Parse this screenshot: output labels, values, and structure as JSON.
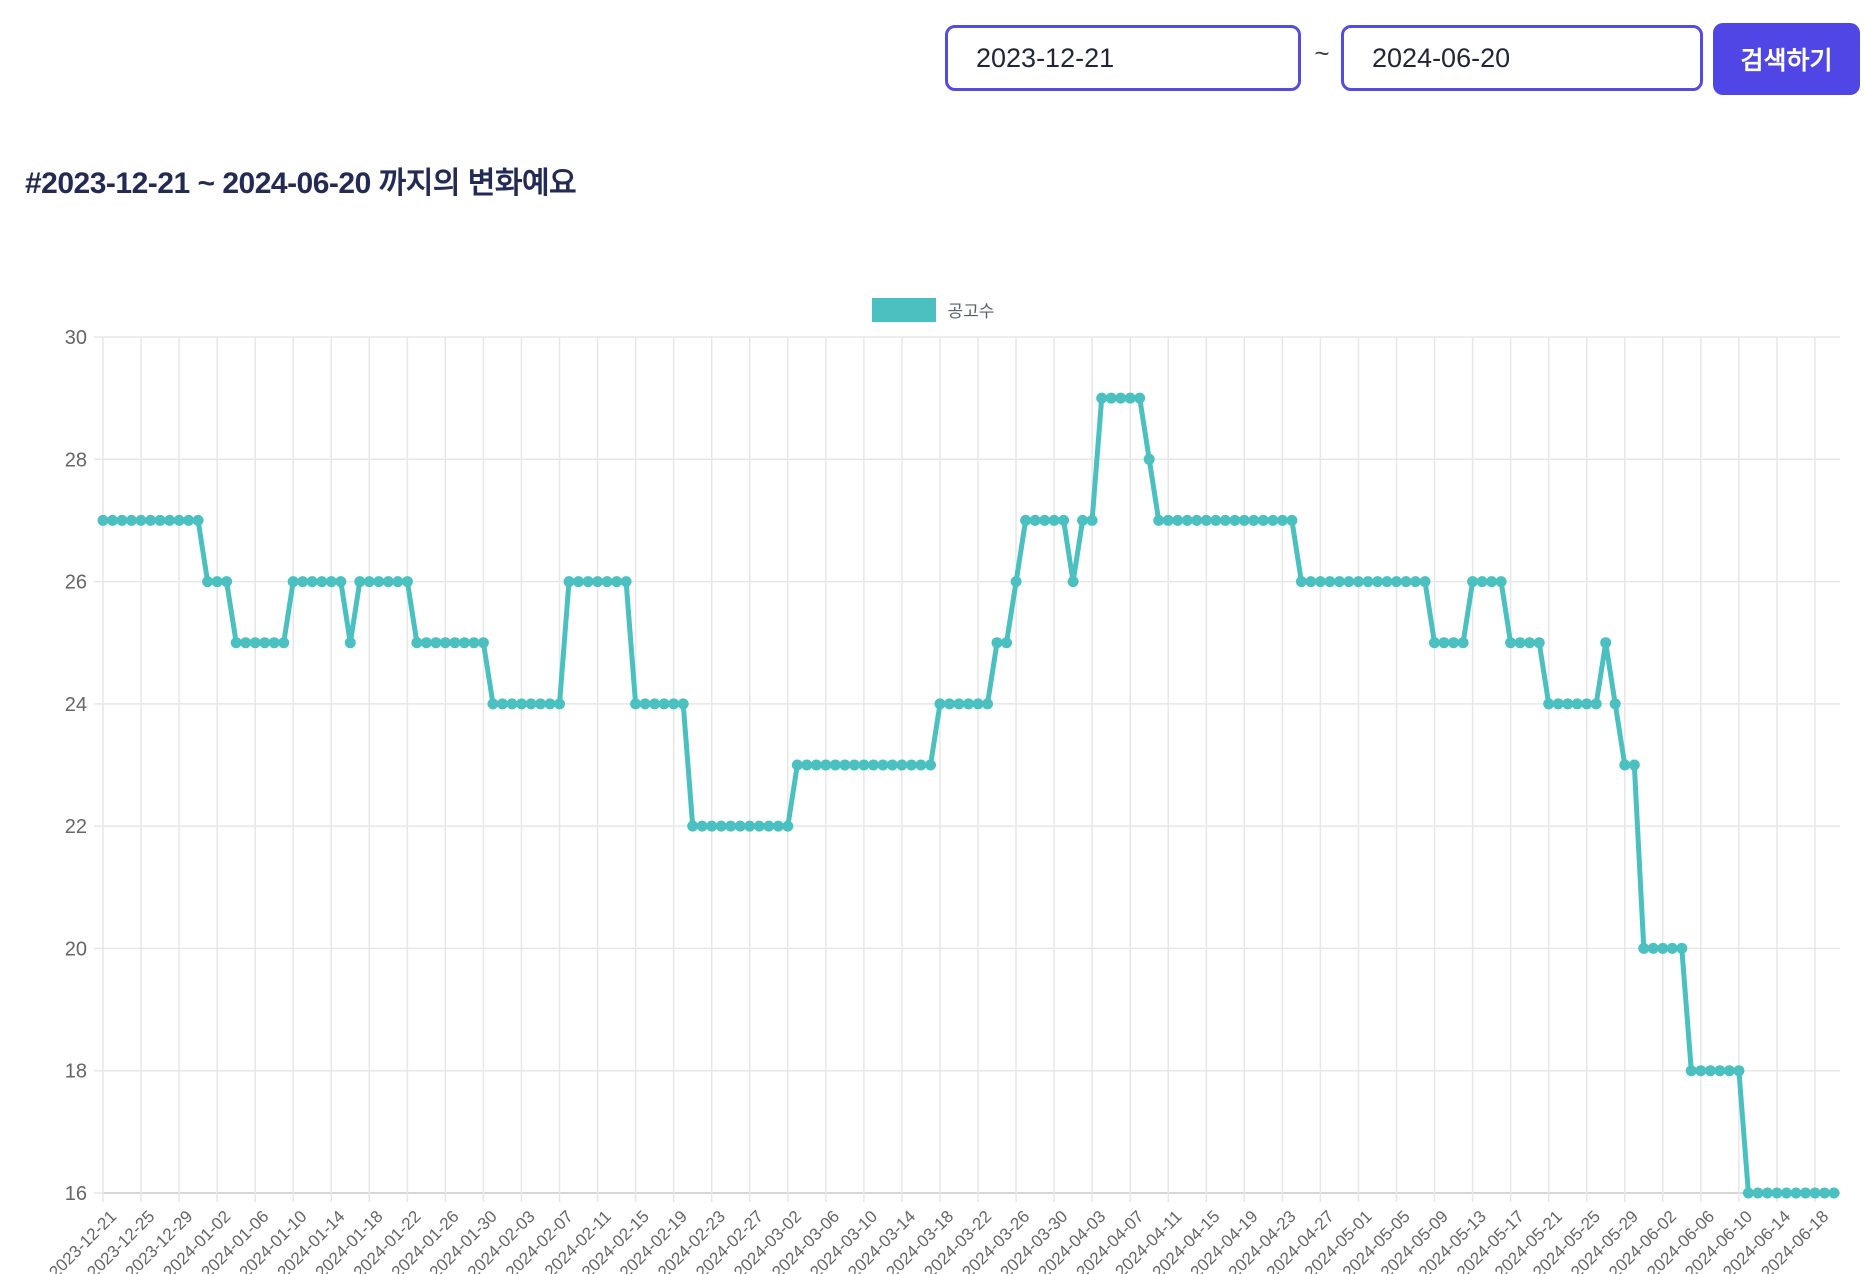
{
  "controls": {
    "start_date": "2023-12-21",
    "end_date": "2024-06-20",
    "separator": "~",
    "search_button": "검색하기"
  },
  "title": "#2023-12-21 ~ 2024-06-20 까지의 변화예요",
  "colors": {
    "accent_indigo": "#4f46e5",
    "input_border": "#544be0",
    "series_teal": "#4bc0c0",
    "grid_line": "#e7e7e7",
    "axis_line": "#c9c9c9",
    "tick_text": "#666666",
    "title_text": "#232b54"
  },
  "chart_data": {
    "type": "line",
    "title": "",
    "xlabel": "",
    "ylabel": "",
    "legend_position": "top",
    "grid": true,
    "ylim": [
      16,
      30
    ],
    "y_ticks": [
      16,
      18,
      20,
      22,
      24,
      26,
      28,
      30
    ],
    "x_start_date": "2023-12-21",
    "x_end_date": "2024-06-20",
    "x_interval": "daily",
    "x_tick_labels": [
      "2023-12-21",
      "2023-12-25",
      "2023-12-29",
      "2024-01-02",
      "2024-01-06",
      "2024-01-10",
      "2024-01-14",
      "2024-01-18",
      "2024-01-22",
      "2024-01-26",
      "2024-01-30",
      "2024-02-03",
      "2024-02-07",
      "2024-02-11",
      "2024-02-15",
      "2024-02-19",
      "2024-02-23",
      "2024-02-27",
      "2024-03-02",
      "2024-03-06",
      "2024-03-10",
      "2024-03-14",
      "2024-03-18",
      "2024-03-22",
      "2024-03-26",
      "2024-03-30",
      "2024-04-03",
      "2024-04-07",
      "2024-04-11",
      "2024-04-15",
      "2024-04-19",
      "2024-04-23",
      "2024-04-27",
      "2024-05-01",
      "2024-05-05",
      "2024-05-09",
      "2024-05-13",
      "2024-05-17",
      "2024-05-21",
      "2024-05-25",
      "2024-05-29",
      "2024-06-02",
      "2024-06-06",
      "2024-06-10",
      "2024-06-14",
      "2024-06-18"
    ],
    "series": [
      {
        "name": "공고수",
        "color": "#4bc0c0",
        "runs": [
          {
            "from": "2023-12-21",
            "to": "2023-12-31",
            "value": 27
          },
          {
            "from": "2024-01-01",
            "to": "2024-01-03",
            "value": 26
          },
          {
            "from": "2024-01-04",
            "to": "2024-01-09",
            "value": 25
          },
          {
            "from": "2024-01-10",
            "to": "2024-01-15",
            "value": 26
          },
          {
            "from": "2024-01-16",
            "to": "2024-01-16",
            "value": 25
          },
          {
            "from": "2024-01-17",
            "to": "2024-01-22",
            "value": 26
          },
          {
            "from": "2024-01-23",
            "to": "2024-01-30",
            "value": 25
          },
          {
            "from": "2024-01-31",
            "to": "2024-02-07",
            "value": 24
          },
          {
            "from": "2024-02-08",
            "to": "2024-02-14",
            "value": 26
          },
          {
            "from": "2024-02-15",
            "to": "2024-02-20",
            "value": 24
          },
          {
            "from": "2024-02-21",
            "to": "2024-03-02",
            "value": 22
          },
          {
            "from": "2024-03-03",
            "to": "2024-03-17",
            "value": 23
          },
          {
            "from": "2024-03-18",
            "to": "2024-03-23",
            "value": 24
          },
          {
            "from": "2024-03-24",
            "to": "2024-03-25",
            "value": 25
          },
          {
            "from": "2024-03-26",
            "to": "2024-03-26",
            "value": 26
          },
          {
            "from": "2024-03-27",
            "to": "2024-03-31",
            "value": 27
          },
          {
            "from": "2024-04-01",
            "to": "2024-04-01",
            "value": 26
          },
          {
            "from": "2024-04-02",
            "to": "2024-04-03",
            "value": 27
          },
          {
            "from": "2024-04-04",
            "to": "2024-04-08",
            "value": 29
          },
          {
            "from": "2024-04-09",
            "to": "2024-04-09",
            "value": 28
          },
          {
            "from": "2024-04-10",
            "to": "2024-04-24",
            "value": 27
          },
          {
            "from": "2024-04-25",
            "to": "2024-05-08",
            "value": 26
          },
          {
            "from": "2024-05-09",
            "to": "2024-05-12",
            "value": 25
          },
          {
            "from": "2024-05-13",
            "to": "2024-05-16",
            "value": 26
          },
          {
            "from": "2024-05-17",
            "to": "2024-05-20",
            "value": 25
          },
          {
            "from": "2024-05-21",
            "to": "2024-05-26",
            "value": 24
          },
          {
            "from": "2024-05-27",
            "to": "2024-05-27",
            "value": 25
          },
          {
            "from": "2024-05-28",
            "to": "2024-05-28",
            "value": 24
          },
          {
            "from": "2024-05-29",
            "to": "2024-05-30",
            "value": 23
          },
          {
            "from": "2024-05-31",
            "to": "2024-06-04",
            "value": 20
          },
          {
            "from": "2024-06-05",
            "to": "2024-06-10",
            "value": 18
          },
          {
            "from": "2024-06-11",
            "to": "2024-06-20",
            "value": 16
          }
        ]
      }
    ]
  }
}
